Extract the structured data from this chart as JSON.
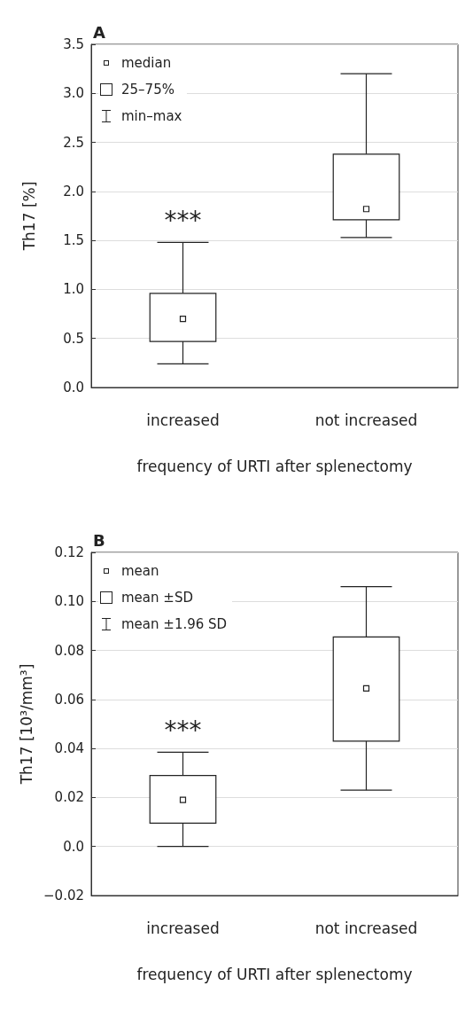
{
  "chart_data": [
    {
      "type": "box",
      "title": "A",
      "xlabel": "frequency of URTI after splenectomy",
      "ylabel": "Th17 [%]",
      "categories": [
        "increased",
        "not increased"
      ],
      "boxes": [
        {
          "low": 0.24,
          "q1": 0.47,
          "median": 0.7,
          "q3": 0.96,
          "high": 1.48
        },
        {
          "low": 1.53,
          "q1": 1.71,
          "median": 1.82,
          "q3": 2.38,
          "high": 3.2
        }
      ],
      "ylim": [
        0,
        3.5
      ],
      "yticks": [
        {
          "value": 0,
          "label": "0.0"
        },
        {
          "value": 0.5,
          "label": "0.5"
        },
        {
          "value": 1,
          "label": "1.0"
        },
        {
          "value": 1.5,
          "label": "1.5"
        },
        {
          "value": 2,
          "label": "2.0"
        },
        {
          "value": 2.5,
          "label": "2.5"
        },
        {
          "value": 3,
          "label": "3.0"
        },
        {
          "value": 3.5,
          "label": "3.5"
        }
      ],
      "annotations": [
        "median",
        "25–75%",
        "min–max",
        "***"
      ],
      "grid": "y"
    },
    {
      "type": "box",
      "title": "B",
      "xlabel": "frequency of URTI after splenectomy",
      "ylabel": "Th17 [10³/mm³]",
      "categories": [
        "increased",
        "not increased"
      ],
      "boxes": [
        {
          "low": 0,
          "q1": 0.0095,
          "mean": 0.019,
          "q3": 0.029,
          "high": 0.0385
        },
        {
          "low": 0.023,
          "q1": 0.043,
          "mean": 0.0645,
          "q3": 0.0855,
          "high": 0.106
        }
      ],
      "ylim": [
        -0.02,
        0.12
      ],
      "yticks": [
        {
          "value": -0.02,
          "label": "−0.02"
        },
        {
          "value": 0,
          "label": "0.0"
        },
        {
          "value": 0.02,
          "label": "0.02"
        },
        {
          "value": 0.04,
          "label": "0.04"
        },
        {
          "value": 0.06,
          "label": "0.06"
        },
        {
          "value": 0.08,
          "label": "0.08"
        },
        {
          "value": 0.1,
          "label": "0.10"
        },
        {
          "value": 0.12,
          "label": "0.12"
        }
      ],
      "annotations": [
        "mean",
        "mean ±SD",
        "mean ±1.96 SD",
        "***"
      ],
      "grid": "y"
    }
  ]
}
